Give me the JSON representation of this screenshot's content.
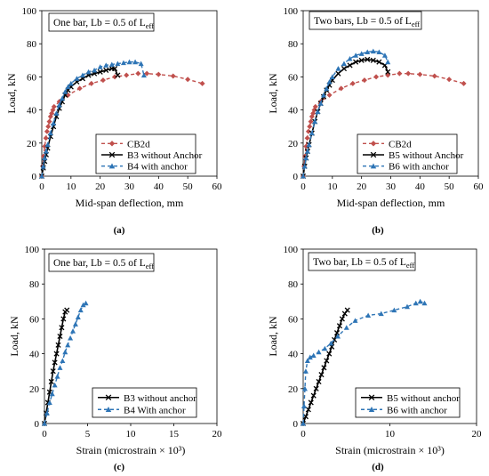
{
  "chart_data": [
    {
      "id": "a",
      "type": "line",
      "caption": "(a)",
      "annotation": "One bar, Lb = 0.5 of L",
      "annotation_sub": "eff",
      "xlabel": "Mid-span deflection, mm",
      "ylabel": "Load, kN",
      "xlim": [
        0,
        60
      ],
      "ylim": [
        0,
        100
      ],
      "xticks": [
        0,
        10,
        20,
        30,
        40,
        50,
        60
      ],
      "yticks": [
        0,
        20,
        40,
        60,
        80,
        100
      ],
      "grid": false,
      "legend_position": "bottom-right",
      "series": [
        {
          "name": "CB2d",
          "color": "#c0504d",
          "marker": "diamond",
          "dash": "dashed",
          "x": [
            0,
            0.3,
            0.6,
            1.0,
            1.4,
            1.8,
            2.2,
            2.6,
            3.0,
            3.4,
            3.8,
            4.2,
            6,
            9,
            13,
            17,
            21,
            25,
            29,
            33,
            36,
            40,
            45,
            50,
            55
          ],
          "y": [
            0,
            6,
            12,
            18,
            23,
            27,
            30,
            33,
            36,
            38,
            40,
            42,
            45,
            49,
            53,
            56,
            58,
            60,
            61,
            62,
            62,
            61.5,
            60.5,
            58.5,
            56
          ]
        },
        {
          "name": "B3 without Anchor",
          "color": "#000000",
          "marker": "x",
          "dash": "solid",
          "x": [
            0,
            0.5,
            1,
            1.5,
            2,
            3,
            4,
            5,
            6,
            7,
            8,
            9,
            10,
            12,
            14,
            16,
            18,
            20,
            22,
            24,
            25,
            26
          ],
          "y": [
            0,
            5,
            9,
            13,
            17,
            24,
            30,
            36,
            41,
            45,
            49,
            52,
            54,
            57,
            59,
            61,
            62,
            63,
            64,
            65,
            65,
            61
          ]
        },
        {
          "name": "B4 with anchor",
          "color": "#2e75b6",
          "marker": "triangle",
          "dash": "dashed",
          "x": [
            0,
            0.5,
            1,
            1.5,
            2,
            3,
            4,
            5,
            6,
            7,
            8,
            9,
            10,
            12,
            14,
            16,
            18,
            20,
            22,
            24,
            26,
            28,
            30,
            32,
            34,
            35
          ],
          "y": [
            0,
            6,
            11,
            15,
            19,
            26,
            32,
            38,
            43,
            47,
            51,
            54,
            56,
            59,
            61,
            63,
            64,
            66,
            67,
            67.5,
            68,
            68.5,
            69,
            69,
            68,
            61
          ]
        }
      ]
    },
    {
      "id": "b",
      "type": "line",
      "caption": "(b)",
      "annotation": "Two bars, Lb = 0.5 of L",
      "annotation_sub": "eff",
      "xlabel": "Mid-span deflection, mm",
      "ylabel": "Load, kN",
      "xlim": [
        0,
        60
      ],
      "ylim": [
        0,
        100
      ],
      "xticks": [
        0,
        10,
        20,
        30,
        40,
        50,
        60
      ],
      "yticks": [
        0,
        20,
        40,
        60,
        80,
        100
      ],
      "grid": false,
      "legend_position": "bottom-right",
      "series": [
        {
          "name": "CB2d",
          "color": "#c0504d",
          "marker": "diamond",
          "dash": "dashed",
          "x": [
            0,
            0.3,
            0.6,
            1.0,
            1.4,
            1.8,
            2.2,
            2.6,
            3.0,
            3.4,
            3.8,
            4.2,
            6,
            9,
            13,
            17,
            21,
            25,
            29,
            33,
            36,
            40,
            45,
            50,
            55
          ],
          "y": [
            0,
            6,
            12,
            18,
            23,
            27,
            30,
            33,
            36,
            38,
            40,
            42,
            45,
            49,
            53,
            56,
            58,
            60,
            61,
            62,
            62,
            61.5,
            60.5,
            58.5,
            56
          ]
        },
        {
          "name": "B5 without Anchor",
          "color": "#000000",
          "marker": "x",
          "dash": "solid",
          "x": [
            0,
            0.5,
            1,
            1.5,
            2,
            3,
            4,
            5,
            6,
            7,
            8,
            9,
            10,
            12,
            14,
            16,
            18,
            20,
            22,
            24,
            26,
            28,
            29
          ],
          "y": [
            0,
            6,
            11,
            15,
            19,
            26,
            33,
            39,
            44,
            48,
            52,
            55,
            58,
            62,
            65,
            67,
            69,
            70,
            70.5,
            70,
            69,
            67,
            63
          ]
        },
        {
          "name": "B6 with anchor",
          "color": "#2e75b6",
          "marker": "triangle",
          "dash": "dashed",
          "x": [
            0,
            0.5,
            1,
            1.5,
            2,
            3,
            4,
            5,
            6,
            7,
            8,
            9,
            10,
            12,
            14,
            16,
            18,
            20,
            22,
            24,
            26,
            28,
            29
          ],
          "y": [
            0,
            6,
            11,
            15,
            19,
            26,
            33,
            39,
            44,
            49,
            53,
            57,
            60,
            65,
            68,
            71,
            73,
            74,
            75,
            75.5,
            75,
            73,
            69
          ]
        }
      ]
    },
    {
      "id": "c",
      "type": "line",
      "caption": "(c)",
      "annotation": "One bar, Lb = 0.5 of L",
      "annotation_sub": "eff",
      "xlabel": "Strain (microstrain × 10³)",
      "ylabel": "Load,  kN",
      "xlim": [
        0,
        20
      ],
      "ylim": [
        0,
        100
      ],
      "xticks": [
        0,
        5,
        10,
        15,
        20
      ],
      "yticks": [
        0,
        20,
        40,
        60,
        80,
        100
      ],
      "grid": false,
      "legend_position": "bottom-right",
      "series": [
        {
          "name": "B3 without anchor",
          "color": "#000000",
          "marker": "x",
          "dash": "solid",
          "x": [
            0,
            0.2,
            0.4,
            0.6,
            0.8,
            1.0,
            1.2,
            1.4,
            1.6,
            1.8,
            2.0,
            2.2,
            2.4,
            2.6
          ],
          "y": [
            0,
            6,
            12,
            18,
            24,
            30,
            35,
            40,
            45,
            50,
            55,
            60,
            64,
            65
          ]
        },
        {
          "name": "B4 With anchor",
          "color": "#2e75b6",
          "marker": "triangle",
          "dash": "dashed",
          "x": [
            0,
            0.3,
            0.6,
            0.9,
            1.2,
            1.5,
            1.8,
            2.1,
            2.4,
            2.7,
            3.0,
            3.3,
            3.6,
            3.9,
            4.2,
            4.5,
            4.8
          ],
          "y": [
            0,
            6,
            12,
            17,
            22,
            27,
            32,
            36,
            41,
            45,
            49,
            53,
            57,
            61,
            65,
            68,
            69
          ]
        }
      ]
    },
    {
      "id": "d",
      "type": "line",
      "caption": "(d)",
      "annotation": "Two bar, Lb = 0.5 of L",
      "annotation_sub": "eff",
      "xlabel": "Strain (microstrain × 10³)",
      "ylabel": "Load,  kN",
      "xlim": [
        0,
        20
      ],
      "ylim": [
        0,
        100
      ],
      "xticks": [
        0,
        10,
        20
      ],
      "yticks": [
        0,
        20,
        40,
        60,
        80,
        100
      ],
      "grid": false,
      "legend_position": "bottom-right",
      "series": [
        {
          "name": "B5 without anchor",
          "color": "#000000",
          "marker": "x",
          "dash": "solid",
          "x": [
            0,
            0.3,
            0.6,
            0.9,
            1.2,
            1.5,
            1.8,
            2.1,
            2.4,
            2.7,
            3.0,
            3.3,
            3.6,
            3.9,
            4.2,
            4.5,
            4.8,
            5.1
          ],
          "y": [
            0,
            4,
            8,
            12,
            16,
            20,
            24,
            28,
            32,
            36,
            40,
            44,
            48,
            52,
            56,
            60,
            63,
            65
          ]
        },
        {
          "name": "B6 with anchor",
          "color": "#2e75b6",
          "marker": "triangle",
          "dash": "dashed",
          "x": [
            0,
            0.1,
            0.2,
            0.3,
            0.5,
            0.8,
            1.2,
            1.8,
            2.5,
            3.2,
            4.0,
            5.0,
            6.0,
            7.5,
            9.0,
            10.5,
            12.0,
            13.0,
            13.5,
            14.0
          ],
          "y": [
            0,
            10,
            20,
            30,
            36,
            38,
            39,
            41,
            43,
            46,
            50,
            55,
            59,
            62,
            63,
            65,
            67,
            69,
            70,
            69
          ]
        }
      ]
    }
  ]
}
